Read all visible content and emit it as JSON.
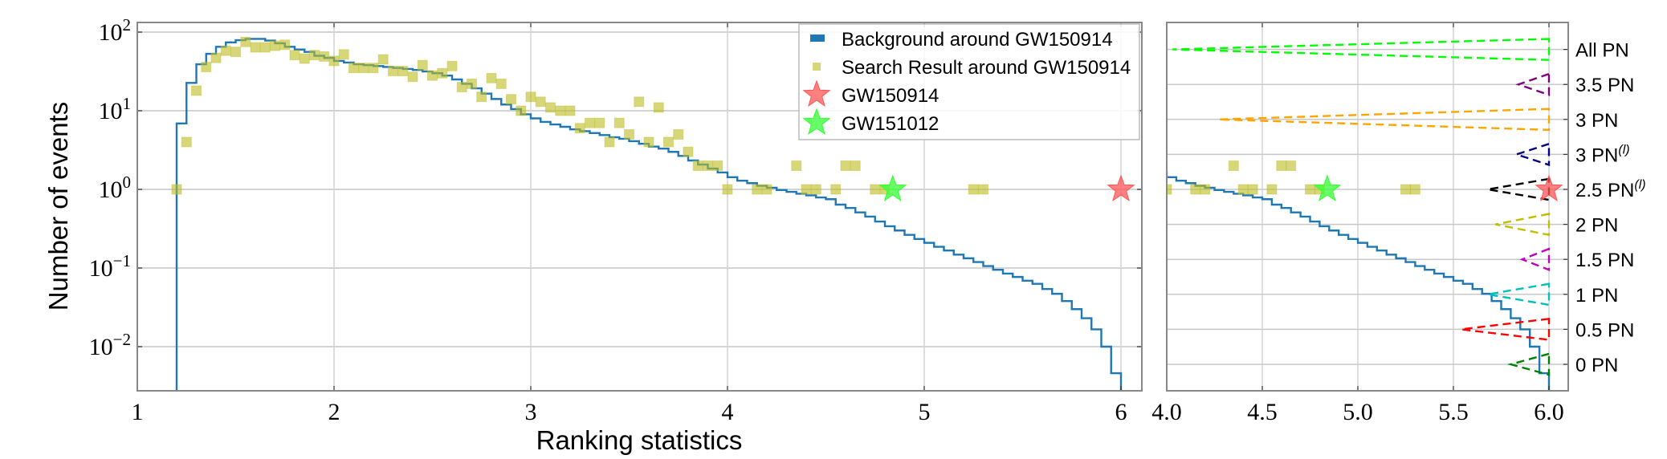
{
  "chart_data": [
    {
      "type": "histogram-scatter",
      "panel": "main",
      "xlabel": "Ranking statistics",
      "ylabel": "Number of events",
      "xlim": [
        1,
        6.14
      ],
      "ylim": [
        0.0028,
        130
      ],
      "yscale": "log",
      "grid": true,
      "x_ticks": [
        "1",
        "2",
        "3",
        "4",
        "5",
        "6"
      ],
      "x_tick_values": [
        1,
        2,
        3,
        4,
        5,
        6
      ],
      "y_ticks": [
        {
          "value": 100,
          "base": "10",
          "exp": "2"
        },
        {
          "value": 10,
          "base": "10",
          "exp": "1"
        },
        {
          "value": 1,
          "base": "10",
          "exp": "0"
        },
        {
          "value": 0.1,
          "base": "10",
          "exp": "−1"
        },
        {
          "value": 0.01,
          "base": "10",
          "exp": "−2"
        }
      ],
      "legend": {
        "placement": "top-right",
        "entries": [
          {
            "label": "Background around GW150914",
            "marker": "line",
            "color": "#1f77b4"
          },
          {
            "label": "Search Result around GW150914",
            "marker": "square",
            "color": "#bcbd22"
          },
          {
            "label": "GW150914",
            "marker": "star",
            "color": "#ff5555"
          },
          {
            "label": "GW151012",
            "marker": "star",
            "color": "#33ff33"
          }
        ]
      },
      "series": [
        {
          "name": "Background around GW150914",
          "type": "step",
          "color": "#1f77b4",
          "bin_start": 1.2,
          "bin_width": 0.05,
          "values": [
            6.9,
            22.6,
            39,
            53,
            65,
            74,
            79,
            82,
            82,
            78,
            72,
            65,
            60,
            56,
            50,
            47,
            43,
            41,
            39,
            38,
            37,
            36,
            35,
            34,
            33,
            31.6,
            30,
            28,
            25,
            22,
            19.3,
            16.5,
            14.1,
            12,
            10.5,
            9.0,
            8.0,
            7.2,
            6.7,
            6.25,
            5.8,
            5.5,
            5.2,
            4.9,
            4.6,
            4.4,
            4.1,
            3.8,
            3.5,
            3.3,
            3.0,
            2.66,
            2.33,
            2.07,
            1.84,
            1.64,
            1.43,
            1.29,
            1.2,
            1.11,
            1.05,
            0.98,
            0.93,
            0.88,
            0.84,
            0.79,
            0.75,
            0.64,
            0.58,
            0.51,
            0.45,
            0.39,
            0.34,
            0.3,
            0.264,
            0.234,
            0.209,
            0.186,
            0.167,
            0.148,
            0.133,
            0.119,
            0.106,
            0.095,
            0.085,
            0.077,
            0.069,
            0.063,
            0.054,
            0.047,
            0.038,
            0.03,
            0.023,
            0.0166,
            0.01,
            0.0046
          ]
        },
        {
          "name": "Search Result around GW150914",
          "type": "scatter",
          "marker": "square",
          "color": "#bcbd22",
          "x": [
            1.2,
            1.25,
            1.3,
            1.35,
            1.4,
            1.45,
            1.5,
            1.55,
            1.6,
            1.65,
            1.7,
            1.75,
            1.8,
            1.85,
            1.9,
            1.95,
            2.0,
            2.05,
            2.1,
            2.15,
            2.2,
            2.25,
            2.3,
            2.35,
            2.4,
            2.45,
            2.5,
            2.55,
            2.6,
            2.65,
            2.7,
            2.75,
            2.8,
            2.85,
            2.9,
            2.95,
            3.0,
            3.05,
            3.1,
            3.15,
            3.2,
            3.25,
            3.3,
            3.35,
            3.4,
            3.45,
            3.5,
            3.55,
            3.6,
            3.65,
            3.7,
            3.75,
            3.8,
            3.85,
            3.9,
            3.95,
            4.0,
            4.15,
            4.2,
            4.35,
            4.4,
            4.45,
            4.55,
            4.6,
            4.65,
            4.75,
            4.8,
            5.25,
            5.3
          ],
          "y": [
            1,
            4,
            18,
            36,
            47,
            58,
            56,
            75,
            64,
            64,
            67,
            69,
            51,
            46,
            51,
            49,
            43,
            52,
            35,
            35,
            35,
            45,
            32,
            32,
            27,
            38,
            28,
            30,
            37,
            20,
            22,
            15,
            26,
            22,
            14,
            10,
            15,
            13,
            11,
            10,
            10,
            6,
            7,
            7,
            4,
            7,
            5,
            13,
            4,
            11,
            4,
            5,
            3,
            2,
            2,
            2,
            1,
            1,
            1,
            2,
            1,
            1,
            1,
            2,
            2,
            1,
            1,
            1,
            1
          ]
        },
        {
          "name": "GW150914",
          "type": "scatter",
          "marker": "star",
          "color": "#ff5555",
          "x": [
            6.0
          ],
          "y": [
            1
          ]
        },
        {
          "name": "GW151012",
          "type": "scatter",
          "marker": "star",
          "color": "#33ff33",
          "x": [
            4.84
          ],
          "y": [
            1
          ]
        }
      ]
    },
    {
      "type": "interval-triangles",
      "panel": "zoom",
      "xlim": [
        4.0,
        6.1
      ],
      "x_ticks": [
        "4.0",
        "4.5",
        "5.0",
        "5.5",
        "6.0"
      ],
      "x_tick_values": [
        4.0,
        4.5,
        5.0,
        5.5,
        6.0
      ],
      "grid": true,
      "y_axis_position": "right",
      "rows": [
        {
          "label": "0 PN",
          "sup": "",
          "min": 5.8,
          "max": 6.0,
          "color": "#008000"
        },
        {
          "label": "0.5 PN",
          "sup": "",
          "min": 5.54,
          "max": 6.0,
          "color": "#ff0000"
        },
        {
          "label": "1 PN",
          "sup": "",
          "min": 5.68,
          "max": 6.0,
          "color": "#00bfbf"
        },
        {
          "label": "1.5 PN",
          "sup": "",
          "min": 5.86,
          "max": 6.0,
          "color": "#bf00bf"
        },
        {
          "label": "2 PN",
          "sup": "",
          "min": 5.72,
          "max": 6.0,
          "color": "#bfbf00"
        },
        {
          "label": "2.5 PN",
          "sup": "(l)",
          "min": 5.68,
          "max": 6.0,
          "color": "#000000"
        },
        {
          "label": "3 PN",
          "sup": "(l)",
          "min": 5.83,
          "max": 6.0,
          "color": "#000080"
        },
        {
          "label": "3 PN",
          "sup": "",
          "min": 4.27,
          "max": 6.0,
          "color": "#ffa500"
        },
        {
          "label": "3.5 PN",
          "sup": "",
          "min": 5.84,
          "max": 6.0,
          "color": "#800080"
        },
        {
          "label": "All PN",
          "sup": "",
          "min": 4.03,
          "max": 6.0,
          "color": "#00ff00"
        }
      ],
      "triangle_half_height_rows": 0.3
    }
  ]
}
